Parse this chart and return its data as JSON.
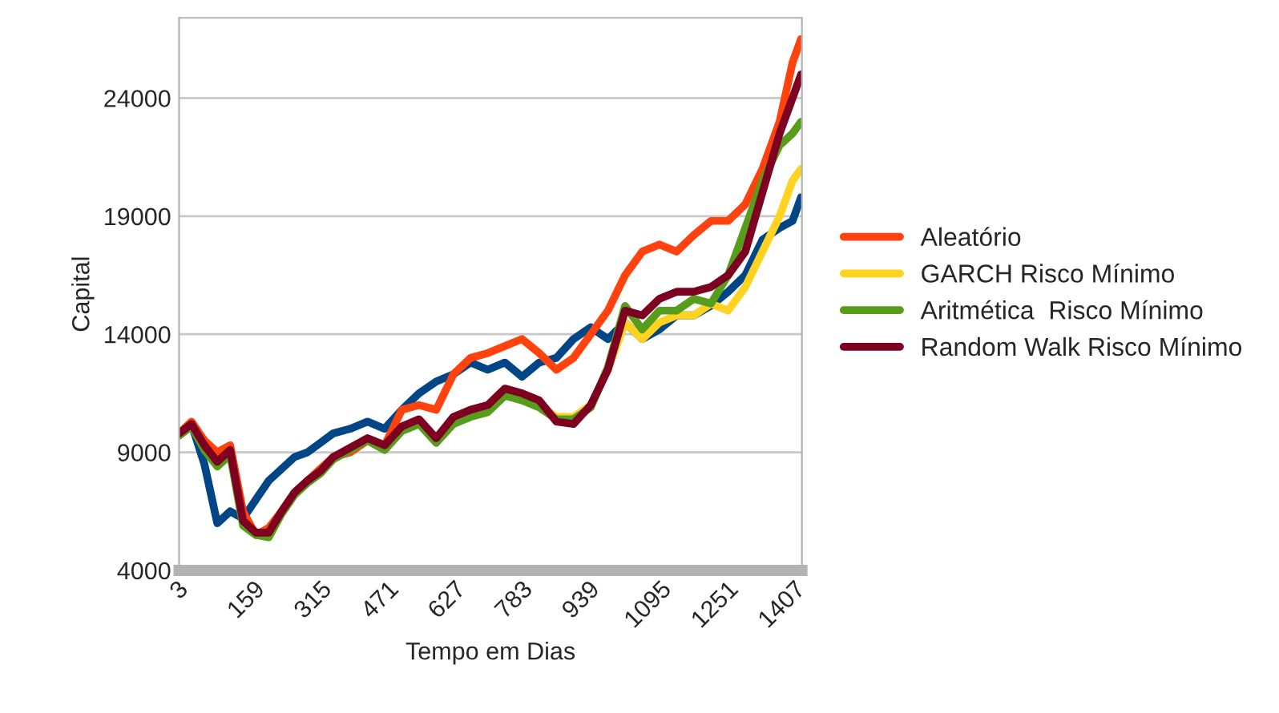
{
  "chart_data": {
    "type": "line",
    "xlabel": "Tempo em Dias",
    "ylabel": "Capital",
    "x": [
      1,
      30,
      60,
      90,
      120,
      150,
      180,
      210,
      240,
      270,
      300,
      330,
      360,
      400,
      440,
      480,
      520,
      560,
      600,
      640,
      680,
      720,
      760,
      800,
      840,
      880,
      920,
      960,
      1000,
      1040,
      1080,
      1120,
      1160,
      1200,
      1240,
      1280,
      1320,
      1360,
      1400,
      1430,
      1450
    ],
    "series": [
      {
        "color": "#004586",
        "values": [
          9800,
          10200,
          8500,
          6000,
          6500,
          6200,
          7000,
          7800,
          8300,
          8800,
          9000,
          9400,
          9800,
          10000,
          10300,
          10000,
          10800,
          11500,
          12000,
          12300,
          12800,
          12500,
          12800,
          12200,
          12800,
          13000,
          13800,
          14300,
          13800,
          14500,
          13800,
          14200,
          14800,
          14800,
          15200,
          15800,
          16500,
          18000,
          18500,
          18800,
          19800
        ]
      },
      {
        "name": "Aleatório",
        "color": "#ff420e",
        "values": [
          9800,
          10300,
          9500,
          9000,
          9300,
          6500,
          5500,
          5800,
          6500,
          7300,
          7800,
          8300,
          8800,
          9000,
          9500,
          9300,
          10800,
          11000,
          10800,
          12300,
          13000,
          13200,
          13500,
          13800,
          13200,
          12500,
          13000,
          14000,
          15000,
          16500,
          17500,
          17800,
          17500,
          18200,
          18800,
          18800,
          19500,
          21000,
          23000,
          25500,
          26500
        ]
      },
      {
        "name": "GARCH Risco Mínimo",
        "color": "#ffd320",
        "values": [
          null,
          null,
          null,
          null,
          null,
          null,
          null,
          null,
          null,
          null,
          null,
          null,
          null,
          null,
          null,
          null,
          null,
          null,
          null,
          null,
          null,
          null,
          null,
          null,
          11000,
          10500,
          10500,
          11000,
          12500,
          14500,
          13800,
          14500,
          14800,
          14800,
          15300,
          15000,
          16000,
          17500,
          19000,
          20500,
          21000
        ]
      },
      {
        "name": "Aritmética  Risco Mínimo",
        "color": "#579d1c",
        "values": [
          9700,
          10100,
          9100,
          8400,
          8900,
          5900,
          5500,
          5400,
          6400,
          7200,
          7700,
          8100,
          8700,
          9100,
          9500,
          9100,
          9900,
          10200,
          9400,
          10200,
          10500,
          10700,
          11400,
          11200,
          10900,
          10400,
          10400,
          10900,
          12600,
          15200,
          14200,
          15000,
          15000,
          15500,
          15300,
          16500,
          18500,
          20500,
          22000,
          22500,
          23000
        ]
      },
      {
        "name": "Random Walk Risco Mínimo",
        "color": "#7e0021",
        "values": [
          9800,
          10200,
          9300,
          8600,
          9100,
          6100,
          5600,
          5600,
          6500,
          7300,
          7800,
          8200,
          8800,
          9200,
          9600,
          9300,
          10100,
          10400,
          9600,
          10500,
          10800,
          11000,
          11700,
          11500,
          11200,
          10300,
          10200,
          11000,
          12500,
          15000,
          14800,
          15500,
          15800,
          15800,
          16000,
          16500,
          17500,
          20000,
          22500,
          24000,
          25000
        ]
      }
    ],
    "xlim": [
      1,
      1452
    ],
    "xticks": [
      3,
      159,
      315,
      471,
      627,
      783,
      939,
      1095,
      1251,
      1407
    ],
    "ylim": [
      4000,
      27400
    ],
    "yticks": [
      4000,
      9000,
      14000,
      19000,
      24000
    ],
    "grid": "y",
    "legend": "right",
    "marker": "none",
    "line_style": "solid"
  }
}
